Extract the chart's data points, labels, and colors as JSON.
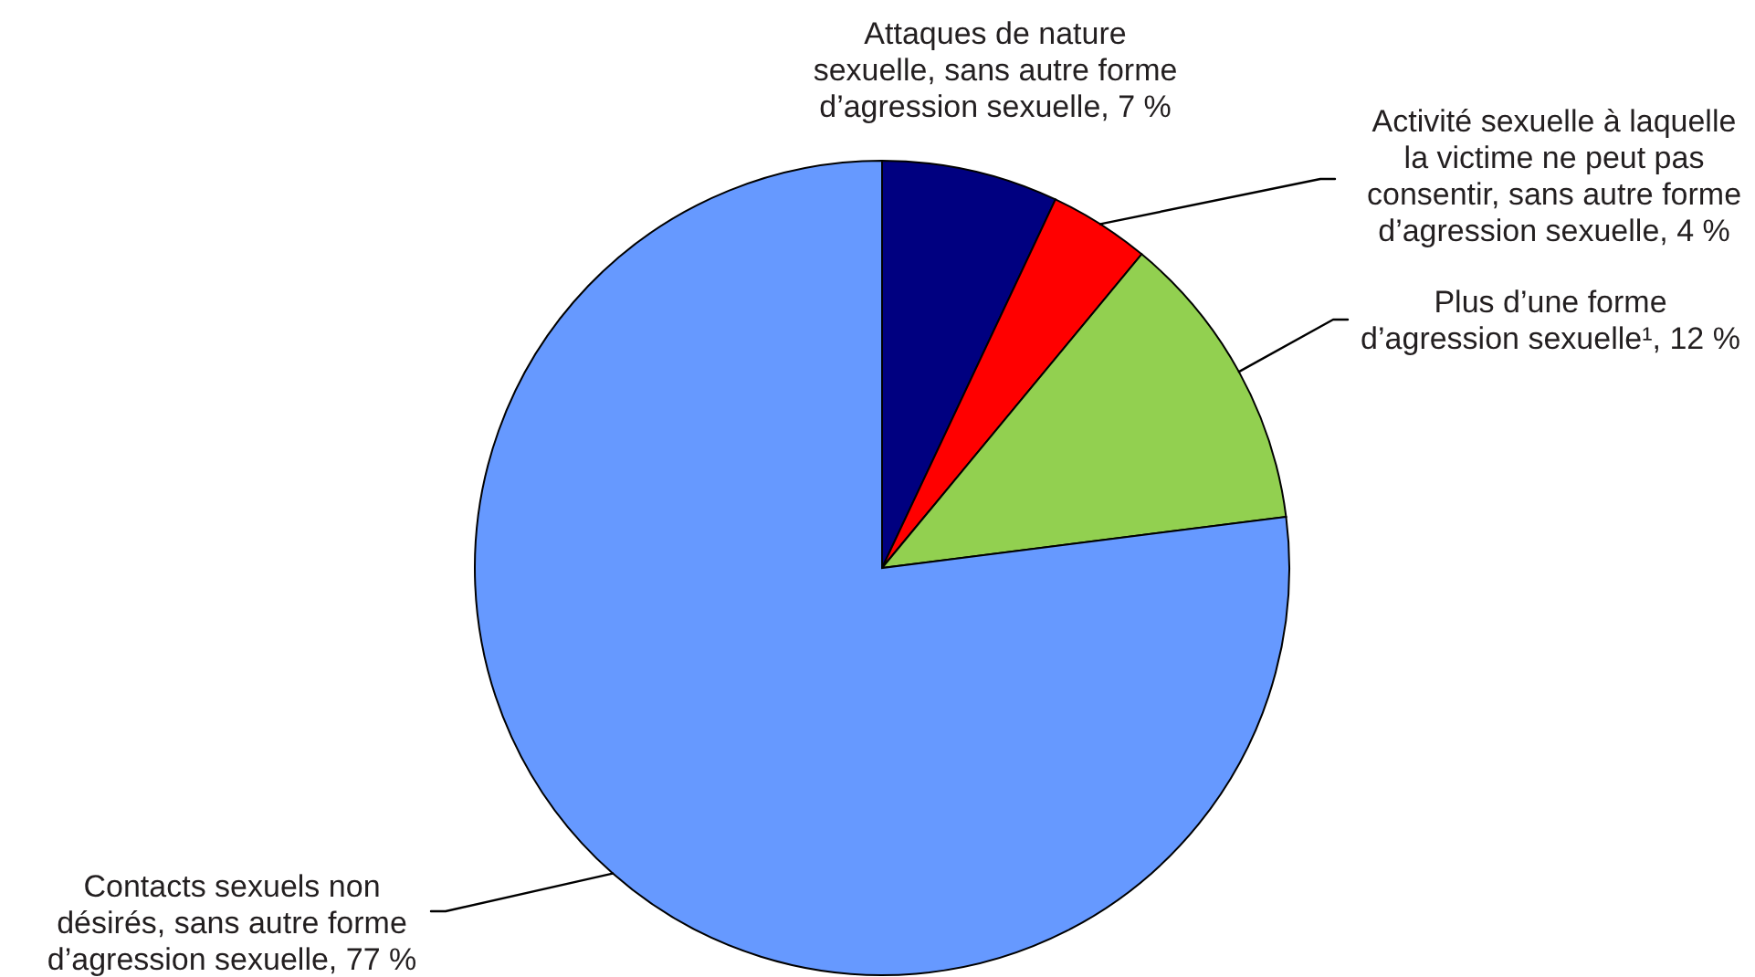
{
  "chart_data": {
    "type": "pie",
    "categories": [
      "Attaques de nature\nsexuelle, sans autre forme\nd’agression sexuelle, 7 %",
      "Activité sexuelle à laquelle\nla victime ne peut pas\nconsentir, sans autre forme\nd’agression sexuelle, 4 %",
      "Plus d’une forme\nd’agression sexuelle¹, 12 %",
      "Contacts sexuels non\ndésirés, sans autre forme\nd’agression sexuelle, 77 %"
    ],
    "values": [
      7,
      4,
      12,
      77
    ],
    "colors": [
      "#000080",
      "#ff0000",
      "#92d050",
      "#6699ff"
    ]
  }
}
